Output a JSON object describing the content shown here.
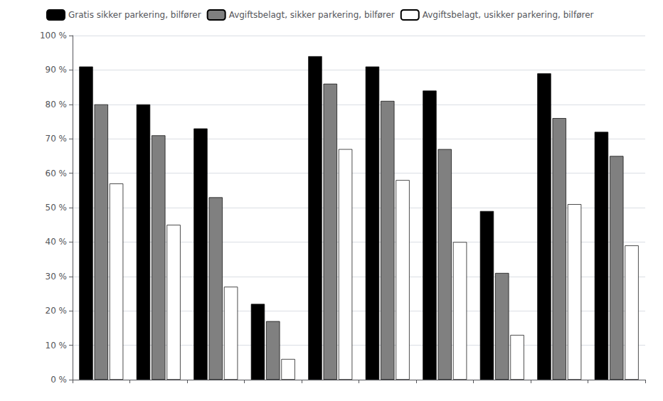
{
  "chart_data": {
    "type": "bar",
    "categories": [
      null,
      null,
      null,
      null,
      null,
      null,
      null,
      null,
      null,
      null
    ],
    "series": [
      {
        "name": "Gratis sikker parkering, bilfører",
        "color": "#000000",
        "values": [
          91,
          80,
          73,
          22,
          94,
          91,
          84,
          49,
          89,
          72
        ]
      },
      {
        "name": "Avgiftsbelagt, sikker parkering, bilfører",
        "color": "#808080",
        "values": [
          80,
          71,
          53,
          17,
          86,
          81,
          67,
          31,
          76,
          65
        ]
      },
      {
        "name": "Avgiftsbelagt, usikker parkering, bilfører",
        "color": "#ffffff",
        "values": [
          57,
          45,
          27,
          6,
          67,
          58,
          40,
          13,
          51,
          39
        ]
      }
    ],
    "ylim": [
      0,
      100
    ],
    "yticks": [
      {
        "value": 0,
        "label": "0 %"
      },
      {
        "value": 10,
        "label": "10 %"
      },
      {
        "value": 20,
        "label": "20 %"
      },
      {
        "value": 30,
        "label": "30 %"
      },
      {
        "value": 40,
        "label": "40 %"
      },
      {
        "value": 50,
        "label": "50 %"
      },
      {
        "value": 60,
        "label": "60 %"
      },
      {
        "value": 70,
        "label": "70 %"
      },
      {
        "value": 80,
        "label": "80 %"
      },
      {
        "value": 90,
        "label": "90 %"
      },
      {
        "value": 100,
        "label": "100 %"
      }
    ],
    "grid": true,
    "legend": "upper left",
    "tick_labels": "y"
  }
}
